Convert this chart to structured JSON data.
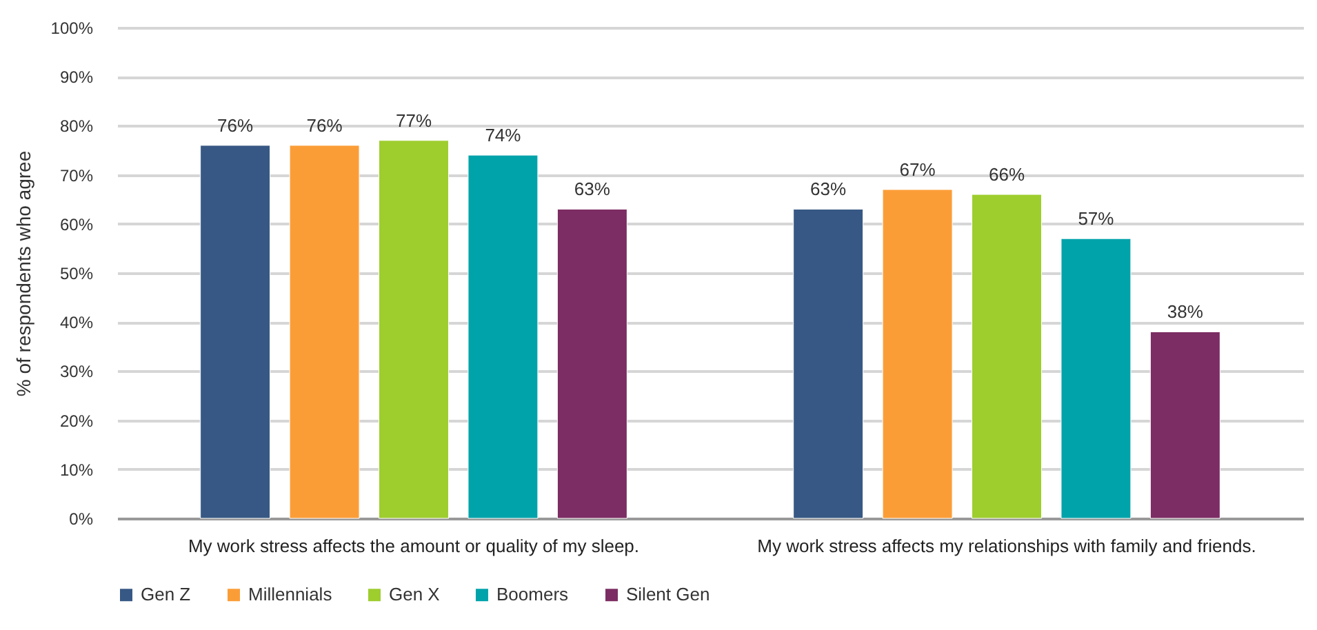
{
  "chart_data": {
    "type": "bar",
    "ylabel": "% of respondents who agree",
    "categories": [
      "My work stress affects the amount or quality of my sleep.",
      "My work stress affects my relationships with family and friends."
    ],
    "series": [
      {
        "name": "Gen Z",
        "color": "#375884",
        "values": [
          76,
          63
        ],
        "value_labels": [
          "76%",
          "63%"
        ]
      },
      {
        "name": "Millennials",
        "color": "#fb9d37",
        "values": [
          76,
          67
        ],
        "value_labels": [
          "76%",
          "67%"
        ]
      },
      {
        "name": "Gen X",
        "color": "#9ecd2e",
        "values": [
          77,
          66
        ],
        "value_labels": [
          "77%",
          "66%"
        ]
      },
      {
        "name": "Boomers",
        "color": "#00a3aa",
        "values": [
          74,
          57
        ],
        "value_labels": [
          "74%",
          "57%"
        ]
      },
      {
        "name": "Silent Gen",
        "color": "#7c2d63",
        "values": [
          63,
          38
        ],
        "value_labels": [
          "63%",
          "38%"
        ]
      }
    ],
    "ylim": [
      0,
      100
    ],
    "yticks": [
      {
        "value": 0,
        "label": "0%"
      },
      {
        "value": 10,
        "label": "10%"
      },
      {
        "value": 20,
        "label": "20%"
      },
      {
        "value": 30,
        "label": "30%"
      },
      {
        "value": 40,
        "label": "40%"
      },
      {
        "value": 50,
        "label": "50%"
      },
      {
        "value": 60,
        "label": "60%"
      },
      {
        "value": 70,
        "label": "70%"
      },
      {
        "value": 80,
        "label": "80%"
      },
      {
        "value": 90,
        "label": "90%"
      },
      {
        "value": 100,
        "label": "100%"
      }
    ],
    "grid": "y",
    "legend": "bottom"
  }
}
